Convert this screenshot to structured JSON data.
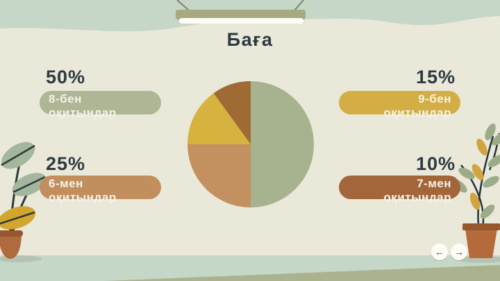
{
  "title": "Баға",
  "stats": [
    {
      "pct": "50%",
      "label_line1": "8-бен",
      "label_line2": "оқитындар",
      "color": "#aeb695"
    },
    {
      "pct": "15%",
      "label_line1": "9-бен",
      "label_line2": "оқитындар",
      "color": "#d2ae45"
    },
    {
      "pct": "25%",
      "label_line1": "6-мен",
      "label_line2": "оқитындар",
      "color": "#c08f5d"
    },
    {
      "pct": "10%",
      "label_line1": "7-мен",
      "label_line2": "оқитындар",
      "color": "#a3663a"
    }
  ],
  "chart_data": {
    "type": "pie",
    "title": "Баға",
    "labels": [
      "8-бен оқитындар",
      "6-мен оқитындар",
      "9-бен оқитындар",
      "7-мен оқитындар"
    ],
    "values": [
      50,
      25,
      15,
      10
    ],
    "colors": [
      "#a7b28e",
      "#c2915f",
      "#d6b33f",
      "#a06a35"
    ],
    "start_angle_deg": 0,
    "direction": "clockwise",
    "legend_position": "none"
  },
  "nav": {
    "prev_icon": "←",
    "next_icon": "→"
  },
  "palette": {
    "background": "#e9e8d9",
    "top_band": "#c6d6c7",
    "floor_band": "#c5d7c7",
    "floor_wedge": "#aab28e",
    "sign_bar": "#a7a982",
    "text_dark": "#2d3a43",
    "pill_text": "#f6f4e9"
  }
}
